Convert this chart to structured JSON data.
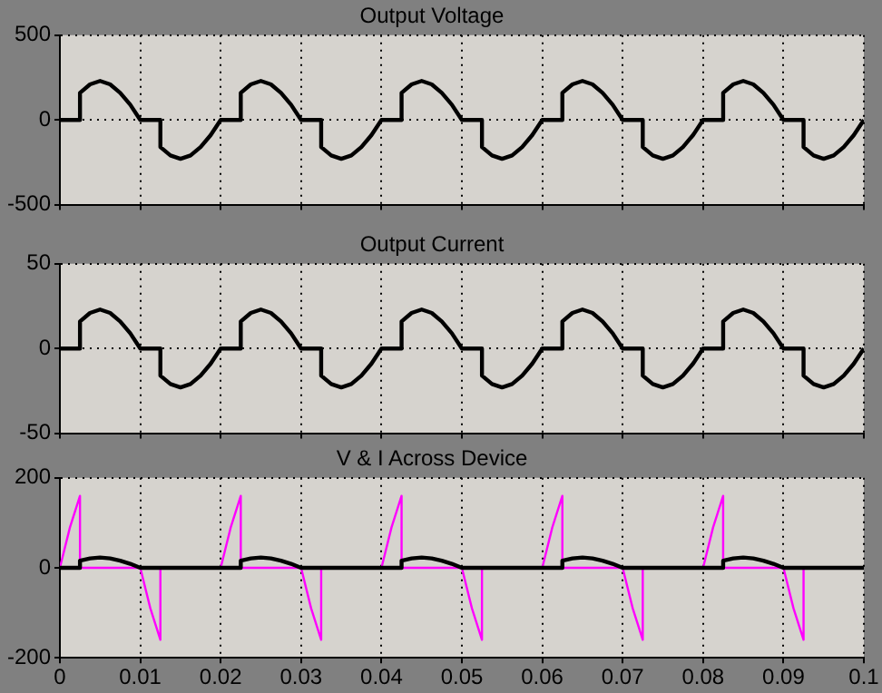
{
  "chart_data": [
    {
      "type": "line",
      "title": "Output Voltage",
      "xlim": [
        0,
        0.1
      ],
      "xticks": [
        0,
        0.01,
        0.02,
        0.03,
        0.04,
        0.05,
        0.06,
        0.07,
        0.08,
        0.09,
        0.1
      ],
      "ylim": [
        -500,
        500
      ],
      "yticks": [
        -500,
        0,
        500
      ],
      "grid": true,
      "tick_labels": "y",
      "marker": "none",
      "x": [
        0,
        0.0025,
        0.0025,
        0.00375,
        0.005,
        0.00625,
        0.0075,
        0.00875,
        0.01,
        0.0125,
        0.0125,
        0.01375,
        0.015,
        0.01625,
        0.0175,
        0.01875,
        0.02,
        0.0225,
        0.0225,
        0.02375,
        0.025,
        0.02625,
        0.0275,
        0.02875,
        0.03,
        0.0325,
        0.0325,
        0.03375,
        0.035,
        0.03625,
        0.0375,
        0.03875,
        0.04,
        0.0425,
        0.0425,
        0.04375,
        0.045,
        0.04625,
        0.0475,
        0.04875,
        0.05,
        0.0525,
        0.0525,
        0.05375,
        0.055,
        0.05625,
        0.0575,
        0.05875,
        0.06,
        0.0625,
        0.0625,
        0.06375,
        0.065,
        0.06625,
        0.0675,
        0.06875,
        0.07,
        0.0725,
        0.0725,
        0.07375,
        0.075,
        0.07625,
        0.0775,
        0.07875,
        0.08,
        0.0825,
        0.0825,
        0.08375,
        0.085,
        0.08625,
        0.0875,
        0.08875,
        0.09,
        0.0925,
        0.0925,
        0.09375,
        0.095,
        0.09625,
        0.0975,
        0.09875,
        0.1
      ],
      "series": [
        {
          "color": "#000000",
          "values": [
            0,
            0,
            160,
            210,
            230,
            210,
            160,
            90,
            0,
            0,
            -160,
            -210,
            -230,
            -210,
            -160,
            -90,
            0,
            0,
            160,
            210,
            230,
            210,
            160,
            90,
            0,
            0,
            -160,
            -210,
            -230,
            -210,
            -160,
            -90,
            0,
            0,
            160,
            210,
            230,
            210,
            160,
            90,
            0,
            0,
            -160,
            -210,
            -230,
            -210,
            -160,
            -90,
            0,
            0,
            160,
            210,
            230,
            210,
            160,
            90,
            0,
            0,
            -160,
            -210,
            -230,
            -210,
            -160,
            -90,
            0,
            0,
            160,
            210,
            230,
            210,
            160,
            90,
            0,
            0,
            -160,
            -210,
            -230,
            -210,
            -160,
            -90,
            0
          ]
        }
      ]
    },
    {
      "type": "line",
      "title": "Output Current",
      "xlim": [
        0,
        0.1
      ],
      "xticks": [
        0,
        0.01,
        0.02,
        0.03,
        0.04,
        0.05,
        0.06,
        0.07,
        0.08,
        0.09,
        0.1
      ],
      "ylim": [
        -50,
        50
      ],
      "yticks": [
        -50,
        0,
        50
      ],
      "grid": true,
      "tick_labels": "y",
      "marker": "none",
      "x": [
        0,
        0.0025,
        0.0025,
        0.00375,
        0.005,
        0.00625,
        0.0075,
        0.00875,
        0.01,
        0.0125,
        0.0125,
        0.01375,
        0.015,
        0.01625,
        0.0175,
        0.01875,
        0.02,
        0.0225,
        0.0225,
        0.02375,
        0.025,
        0.02625,
        0.0275,
        0.02875,
        0.03,
        0.0325,
        0.0325,
        0.03375,
        0.035,
        0.03625,
        0.0375,
        0.03875,
        0.04,
        0.0425,
        0.0425,
        0.04375,
        0.045,
        0.04625,
        0.0475,
        0.04875,
        0.05,
        0.0525,
        0.0525,
        0.05375,
        0.055,
        0.05625,
        0.0575,
        0.05875,
        0.06,
        0.0625,
        0.0625,
        0.06375,
        0.065,
        0.06625,
        0.0675,
        0.06875,
        0.07,
        0.0725,
        0.0725,
        0.07375,
        0.075,
        0.07625,
        0.0775,
        0.07875,
        0.08,
        0.0825,
        0.0825,
        0.08375,
        0.085,
        0.08625,
        0.0875,
        0.08875,
        0.09,
        0.0925,
        0.0925,
        0.09375,
        0.095,
        0.09625,
        0.0975,
        0.09875,
        0.1
      ],
      "series": [
        {
          "color": "#000000",
          "values": [
            0,
            0,
            16,
            21,
            23,
            21,
            16,
            9,
            0,
            0,
            -16,
            -21,
            -23,
            -21,
            -16,
            -9,
            0,
            0,
            16,
            21,
            23,
            21,
            16,
            9,
            0,
            0,
            -16,
            -21,
            -23,
            -21,
            -16,
            -9,
            0,
            0,
            16,
            21,
            23,
            21,
            16,
            9,
            0,
            0,
            -16,
            -21,
            -23,
            -21,
            -16,
            -9,
            0,
            0,
            16,
            21,
            23,
            21,
            16,
            9,
            0,
            0,
            -16,
            -21,
            -23,
            -21,
            -16,
            -9,
            0,
            0,
            16,
            21,
            23,
            21,
            16,
            9,
            0,
            0,
            -16,
            -21,
            -23,
            -21,
            -16,
            -9,
            0
          ]
        }
      ]
    },
    {
      "type": "line",
      "title": "V & I Across Device",
      "xlim": [
        0,
        0.1
      ],
      "xticks": [
        0,
        0.01,
        0.02,
        0.03,
        0.04,
        0.05,
        0.06,
        0.07,
        0.08,
        0.09,
        0.1
      ],
      "ylim": [
        -200,
        200
      ],
      "yticks": [
        -200,
        0,
        200
      ],
      "grid": true,
      "marker": "none",
      "series": [
        {
          "color": "#000000",
          "x": [
            0,
            0.0025,
            0.0025,
            0.00375,
            0.005,
            0.00625,
            0.0075,
            0.00875,
            0.01,
            0.02,
            0.0225,
            0.0225,
            0.02375,
            0.025,
            0.02625,
            0.0275,
            0.02875,
            0.03,
            0.04,
            0.0425,
            0.0425,
            0.04375,
            0.045,
            0.04625,
            0.0475,
            0.04875,
            0.05,
            0.06,
            0.0625,
            0.0625,
            0.06375,
            0.065,
            0.06625,
            0.0675,
            0.06875,
            0.07,
            0.08,
            0.0825,
            0.0825,
            0.08375,
            0.085,
            0.08625,
            0.0875,
            0.08875,
            0.09,
            0.1
          ],
          "values": [
            0,
            0,
            16,
            21,
            23,
            21,
            16,
            9,
            0,
            0,
            0,
            16,
            21,
            23,
            21,
            16,
            9,
            0,
            0,
            0,
            16,
            21,
            23,
            21,
            16,
            9,
            0,
            0,
            0,
            16,
            21,
            23,
            21,
            16,
            9,
            0,
            0,
            0,
            16,
            21,
            23,
            21,
            16,
            9,
            0,
            0
          ]
        },
        {
          "color": "#ff00ff",
          "x": [
            0,
            0.00125,
            0.0025,
            0.0025,
            0.01,
            0.01125,
            0.0125,
            0.0125,
            0.02,
            0.02125,
            0.0225,
            0.0225,
            0.03,
            0.03125,
            0.0325,
            0.0325,
            0.04,
            0.04125,
            0.0425,
            0.0425,
            0.05,
            0.05125,
            0.0525,
            0.0525,
            0.06,
            0.06125,
            0.0625,
            0.0625,
            0.07,
            0.07125,
            0.0725,
            0.0725,
            0.08,
            0.08125,
            0.0825,
            0.0825,
            0.09,
            0.09125,
            0.0925,
            0.0925,
            0.1
          ],
          "values": [
            0,
            90,
            160,
            0,
            0,
            -90,
            -160,
            0,
            0,
            90,
            160,
            0,
            0,
            -90,
            -160,
            0,
            0,
            90,
            160,
            0,
            0,
            -90,
            -160,
            0,
            0,
            90,
            160,
            0,
            0,
            -90,
            -160,
            0,
            0,
            90,
            160,
            0,
            0,
            -90,
            -160,
            0,
            0
          ]
        }
      ]
    }
  ]
}
